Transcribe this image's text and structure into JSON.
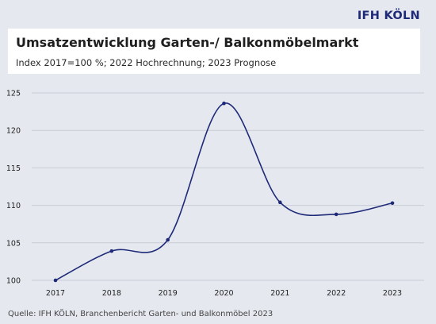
{
  "brand": "IFH KÖLN",
  "title": "Umsatzentwicklung Garten-/ Balkonmöbelmarkt",
  "subtitle": "Index 2017=100 %; 2022 Hochrechnung; 2023 Prognose",
  "source": "Quelle: IFH KÖLN, Branchenbericht Garten- und Balkonmöbel 2023",
  "colors": {
    "line": "#1e2a78",
    "brand": "#1e2a78",
    "grid": "#c9ccd4",
    "background": "#e5e8ef"
  },
  "chart_data": {
    "type": "line",
    "categories": [
      "2017",
      "2018",
      "2019",
      "2020",
      "2021",
      "2022",
      "2023"
    ],
    "values": [
      100,
      103.9,
      105.4,
      123.6,
      110.4,
      108.8,
      110.3
    ],
    "ylim": [
      100,
      125
    ],
    "yticks": [
      "100",
      "105",
      "110",
      "115",
      "120",
      "125"
    ],
    "grid": true,
    "smooth": true
  }
}
